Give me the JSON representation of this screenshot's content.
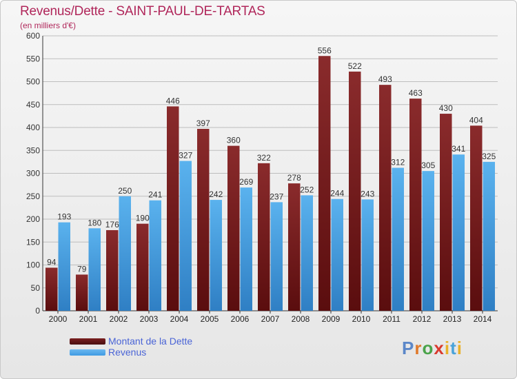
{
  "title": "Revenus/Dette - SAINT-PAUL-DE-TARTAS",
  "subtitle": "(en milliers d'€)",
  "logo_text": "Proxiti",
  "colors": {
    "dette": "#7a1f20",
    "revenus": "#3f9be3",
    "title": "#b0265a",
    "legend_text": "#4a64d6"
  },
  "chart_data": {
    "type": "bar",
    "categories": [
      "2000",
      "2001",
      "2002",
      "2003",
      "2004",
      "2005",
      "2006",
      "2007",
      "2008",
      "2009",
      "2010",
      "2011",
      "2012",
      "2013",
      "2014"
    ],
    "series": [
      {
        "name": "Montant de la Dette",
        "values": [
          94,
          79,
          176,
          190,
          446,
          397,
          360,
          322,
          278,
          556,
          522,
          493,
          463,
          430,
          404
        ]
      },
      {
        "name": "Revenus",
        "values": [
          193,
          180,
          250,
          241,
          327,
          242,
          269,
          237,
          252,
          244,
          243,
          312,
          305,
          341,
          325
        ]
      }
    ],
    "ylim": [
      0,
      600
    ],
    "yticks": [
      0,
      50,
      100,
      150,
      200,
      250,
      300,
      350,
      400,
      450,
      500,
      550,
      600
    ],
    "grid": true,
    "legend_position": "bottom-left"
  }
}
